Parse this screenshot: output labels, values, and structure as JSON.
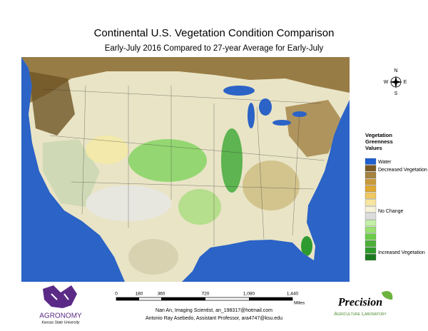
{
  "header": {
    "title": "Continental U.S. Vegetation Condition Comparison",
    "subtitle": "Early-July 2016 Compared to 27-year Average for Early-July"
  },
  "compass": {
    "n": "N",
    "e": "E",
    "s": "S",
    "w": "W"
  },
  "legend": {
    "title": [
      "Vegetation",
      "Greenness",
      "Values"
    ],
    "water": "Water",
    "decreased": "Decreased Vegetation",
    "no_change": "No Change",
    "increased": "Increased Vegetation"
  },
  "scale": {
    "labels": [
      "0",
      "180",
      "360",
      "720",
      "1,080",
      "1,440"
    ],
    "unit": "Miles"
  },
  "credits": [
    "Nan An, Imaging Scientist, an_198317@hotmail.com",
    "Antonio Ray Asebedo, Assistant Professor, ara4747@ksu.edu"
  ],
  "logos": {
    "agronomy": "AGRONOMY",
    "university": "Kansas State University",
    "precision": "Precision",
    "lab": "Agriculture Laboratory"
  }
}
